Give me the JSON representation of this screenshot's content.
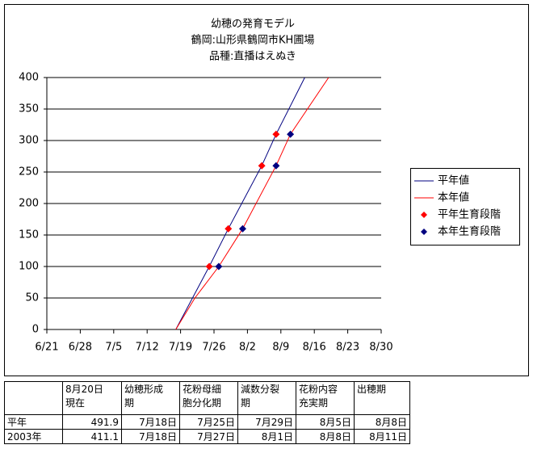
{
  "chart_data": {
    "type": "line",
    "title": [
      "幼穂の発育モデル",
      "鶴岡:山形県鶴岡市KH圃場",
      "品種:直播はえぬき"
    ],
    "xlim": [
      "6/21",
      "8/30"
    ],
    "xticks": [
      "6/21",
      "6/28",
      "7/5",
      "7/12",
      "7/19",
      "7/26",
      "8/2",
      "8/9",
      "8/16",
      "8/23",
      "8/30"
    ],
    "ylim": [
      0,
      400
    ],
    "yticks": [
      0,
      50,
      100,
      150,
      200,
      250,
      300,
      350,
      400
    ],
    "grid": true,
    "legend": "right",
    "series": [
      {
        "name": "平年値",
        "color": "#000080",
        "mode": "line",
        "x": [
          "7/18",
          "7/25",
          "7/29",
          "8/5",
          "8/8",
          "8/14"
        ],
        "values": [
          0,
          100,
          160,
          260,
          310,
          400
        ]
      },
      {
        "name": "本年値",
        "color": "#ff0000",
        "mode": "line",
        "x": [
          "7/18",
          "7/22",
          "7/27",
          "8/1",
          "8/8",
          "8/11",
          "8/19"
        ],
        "values": [
          0,
          50,
          100,
          160,
          260,
          310,
          400
        ]
      },
      {
        "name": "平年生育段階",
        "color": "#ff0000",
        "mode": "markers",
        "x": [
          "7/25",
          "7/29",
          "8/5",
          "8/8"
        ],
        "values": [
          100,
          160,
          260,
          310
        ]
      },
      {
        "name": "本年生育段階",
        "color": "#000080",
        "mode": "markers",
        "x": [
          "7/27",
          "8/1",
          "8/8",
          "8/11"
        ],
        "values": [
          100,
          160,
          260,
          310
        ]
      }
    ]
  },
  "table": {
    "header": [
      "",
      "8月20日\n現在",
      "幼穂形成\n期",
      "花粉母細\n胞分化期",
      "減数分裂\n期",
      "花粉内容\n充実期",
      "出穂期"
    ],
    "rows": [
      [
        "平年",
        491.9,
        "7月18日",
        "7月25日",
        "7月29日",
        "8月5日",
        "8月8日"
      ],
      [
        "2003年",
        411.1,
        "7月18日",
        "7月27日",
        "8月1日",
        "8月8日",
        "8月11日"
      ]
    ]
  }
}
